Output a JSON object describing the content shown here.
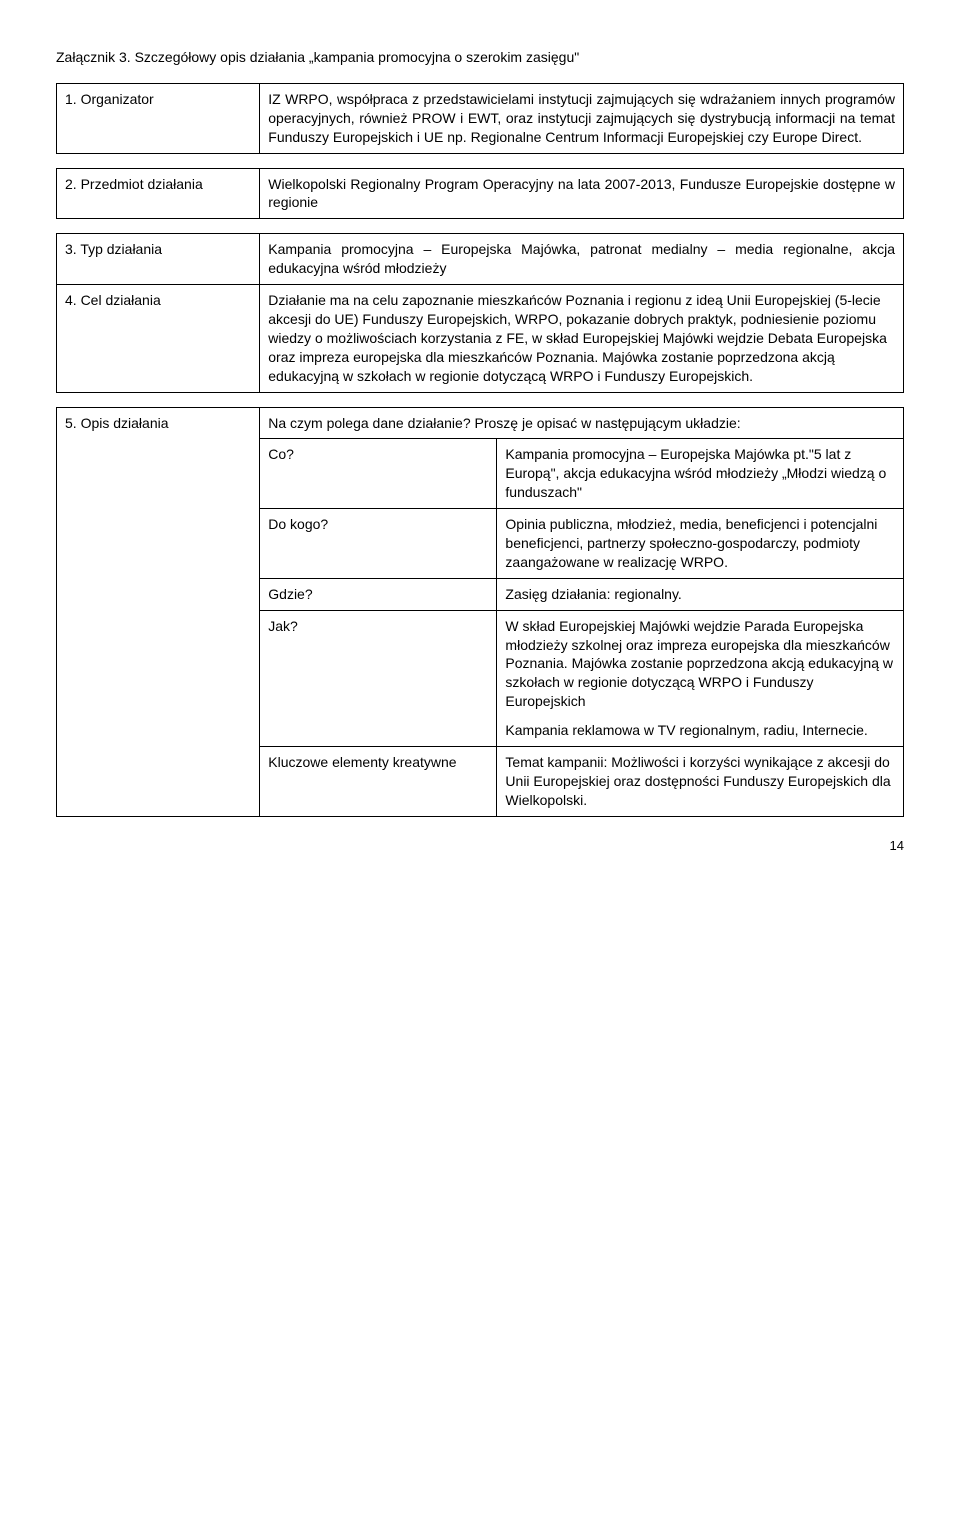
{
  "title": "Załącznik 3. Szczegółowy opis działania „kampania promocyjna o szerokim zasięgu\"",
  "rows": {
    "r1_label": "1. Organizator",
    "r1_text": "IZ WRPO, współpraca z przedstawicielami instytucji zajmujących się wdrażaniem innych programów operacyjnych, również PROW i EWT, oraz instytucji zajmujących się dystrybucją informacji na temat Funduszy Europejskich i UE np. Regionalne Centrum Informacji Europejskiej czy Europe Direct.",
    "r2_label": "2. Przedmiot działania",
    "r2_text": "Wielkopolski Regionalny Program Operacyjny na lata 2007-2013, Fundusze Europejskie dostępne w regionie",
    "r3_label": "3. Typ działania",
    "r3_text": "Kampania promocyjna – Europejska Majówka, patronat medialny – media regionalne, akcja edukacyjna wśród młodzieży",
    "r4_label": "4. Cel działania",
    "r4_text": "Działanie ma na celu zapoznanie mieszkańców Poznania i regionu z ideą Unii Europejskiej (5-lecie akcesji do UE) Funduszy Europejskich, WRPO, pokazanie dobrych praktyk, podniesienie poziomu wiedzy o możliwościach korzystania z FE, w skład Europejskiej Majówki wejdzie Debata Europejska oraz impreza europejska dla mieszkańców Poznania. Majówka zostanie poprzedzona akcją edukacyjną w szkołach w regionie dotyczącą WRPO i Funduszy Europejskich.",
    "r5_label": "5. Opis działania",
    "r5_intro": "Na czym polega dane działanie? Proszę je opisać w następującym układzie:",
    "r5_co_label": "Co?",
    "r5_co_text": "Kampania promocyjna – Europejska Majówka pt.\"5 lat z Europą\", akcja edukacyjna wśród młodzieży „Młodzi wiedzą o funduszach\"",
    "r5_dokogo_label": "Do kogo?",
    "r5_dokogo_text": "Opinia publiczna, młodzież, media, beneficjenci i potencjalni beneficjenci, partnerzy społeczno-gospodarczy, podmioty zaangażowane w realizację WRPO.",
    "r5_gdzie_label": "Gdzie?",
    "r5_gdzie_text": "Zasięg działania: regionalny.",
    "r5_jak_label": "Jak?",
    "r5_jak_text1": "W skład Europejskiej Majówki wejdzie Parada Europejska młodzieży szkolnej oraz impreza europejska dla mieszkańców Poznania. Majówka zostanie poprzedzona akcją edukacyjną w szkołach w regionie dotyczącą WRPO i Funduszy Europejskich",
    "r5_jak_text2": "Kampania reklamowa w TV regionalnym, radiu, Internecie.",
    "r5_kluczowe_label": "Kluczowe elementy kreatywne",
    "r5_kluczowe_text": "Temat kampanii: Możliwości i korzyści wynikające z akcesji do Unii Europejskiej oraz dostępności Funduszy Europejskich dla Wielkopolski."
  },
  "page_number": "14"
}
